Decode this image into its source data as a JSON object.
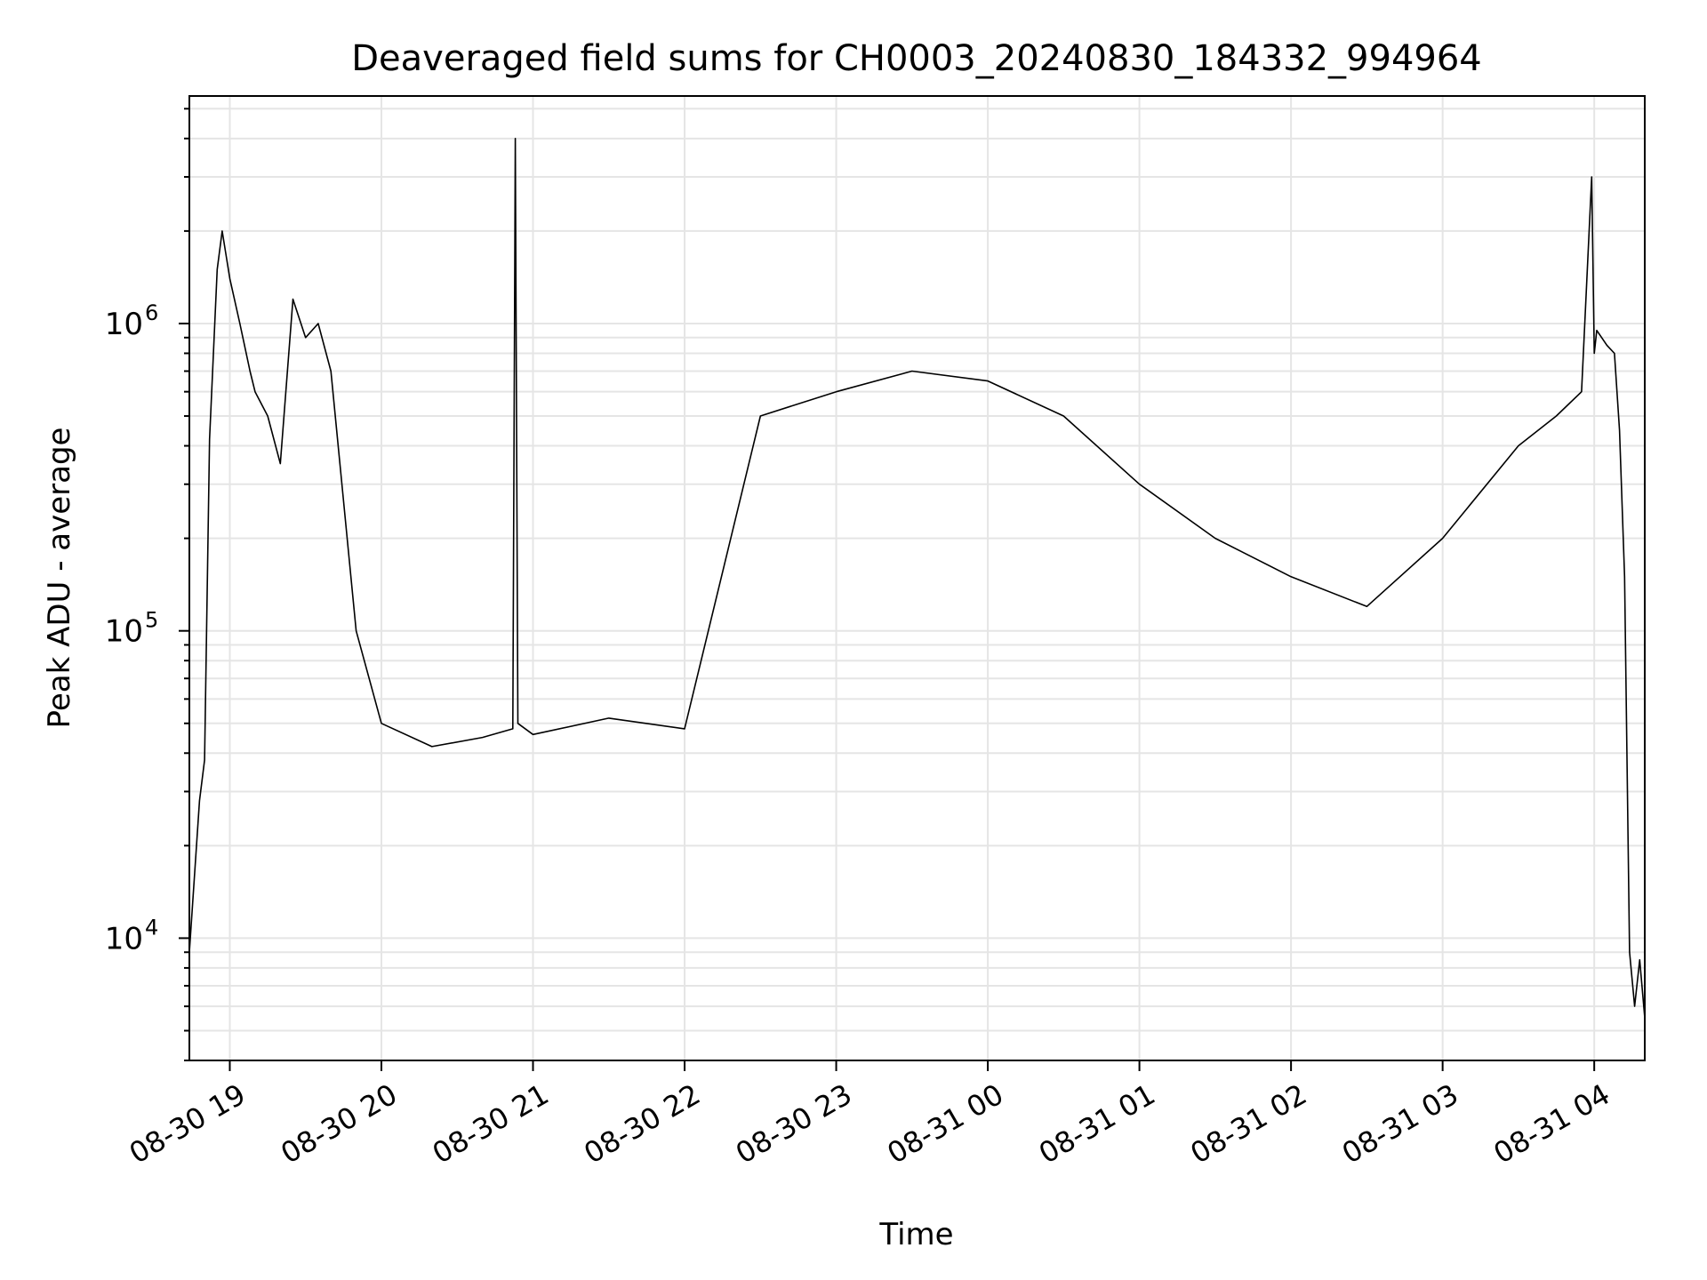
{
  "chart_data": {
    "type": "line",
    "title": "Deaveraged field sums for CH0003_20240830_184332_994964",
    "xlabel": "Time",
    "ylabel": "Peak ADU - average",
    "y_scale": "log",
    "ylim": [
      4000,
      5500000
    ],
    "xlim": [
      "2024-08-30 18:44",
      "2024-08-31 04:20"
    ],
    "x_ticks": [
      {
        "value": "2024-08-30 19:00",
        "label": "08-30 19"
      },
      {
        "value": "2024-08-30 20:00",
        "label": "08-30 20"
      },
      {
        "value": "2024-08-30 21:00",
        "label": "08-30 21"
      },
      {
        "value": "2024-08-30 22:00",
        "label": "08-30 22"
      },
      {
        "value": "2024-08-30 23:00",
        "label": "08-30 23"
      },
      {
        "value": "2024-08-31 00:00",
        "label": "08-31 00"
      },
      {
        "value": "2024-08-31 01:00",
        "label": "08-31 01"
      },
      {
        "value": "2024-08-31 02:00",
        "label": "08-31 02"
      },
      {
        "value": "2024-08-31 03:00",
        "label": "08-31 03"
      },
      {
        "value": "2024-08-31 04:00",
        "label": "08-31 04"
      }
    ],
    "y_ticks": [
      {
        "value": 10000,
        "base": "10",
        "exp": "4"
      },
      {
        "value": 100000,
        "base": "10",
        "exp": "5"
      },
      {
        "value": 1000000,
        "base": "10",
        "exp": "6"
      }
    ],
    "grid": true,
    "line_color": "#000000",
    "grid_color": "#e5e5e5",
    "series": [
      {
        "x": [
          "2024-08-30 18:44",
          "2024-08-30 18:48",
          "2024-08-30 18:50",
          "2024-08-30 18:52",
          "2024-08-30 18:55",
          "2024-08-30 18:57",
          "2024-08-30 19:00",
          "2024-08-30 19:04",
          "2024-08-30 19:08",
          "2024-08-30 19:10",
          "2024-08-30 19:15",
          "2024-08-30 19:20",
          "2024-08-30 19:25",
          "2024-08-30 19:30",
          "2024-08-30 19:35",
          "2024-08-30 19:40",
          "2024-08-30 19:50",
          "2024-08-30 20:00",
          "2024-08-30 20:20",
          "2024-08-30 20:40",
          "2024-08-30 20:52",
          "2024-08-30 20:53",
          "2024-08-30 20:54",
          "2024-08-30 21:00",
          "2024-08-30 21:30",
          "2024-08-30 22:00",
          "2024-08-30 22:30",
          "2024-08-30 23:00",
          "2024-08-30 23:30",
          "2024-08-31 00:00",
          "2024-08-31 00:30",
          "2024-08-31 01:00",
          "2024-08-31 01:30",
          "2024-08-31 02:00",
          "2024-08-31 02:30",
          "2024-08-31 03:00",
          "2024-08-31 03:30",
          "2024-08-31 03:45",
          "2024-08-31 03:55",
          "2024-08-31 03:59",
          "2024-08-31 04:00",
          "2024-08-31 04:01",
          "2024-08-31 04:05",
          "2024-08-31 04:08",
          "2024-08-31 04:10",
          "2024-08-31 04:12",
          "2024-08-31 04:14",
          "2024-08-31 04:16",
          "2024-08-31 04:18",
          "2024-08-31 04:20"
        ],
        "y": [
          9000,
          28000,
          38000,
          420000,
          1500000,
          2000000,
          1400000,
          1000000,
          700000,
          600000,
          500000,
          350000,
          1200000,
          900000,
          1000000,
          700000,
          100000,
          50000,
          42000,
          45000,
          48000,
          4000000,
          50000,
          46000,
          52000,
          48000,
          500000,
          600000,
          700000,
          650000,
          500000,
          300000,
          200000,
          150000,
          120000,
          200000,
          400000,
          500000,
          600000,
          3000000,
          800000,
          950000,
          850000,
          800000,
          450000,
          150000,
          9000,
          6000,
          8500,
          5500
        ]
      }
    ]
  }
}
